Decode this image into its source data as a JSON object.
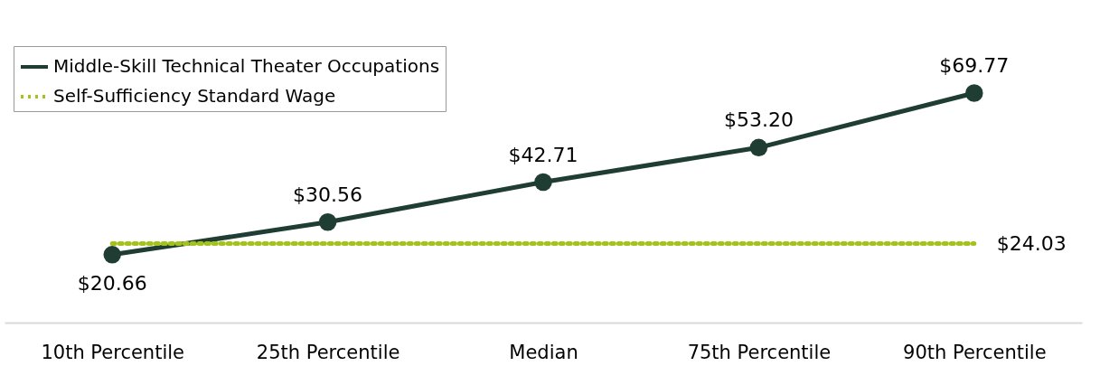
{
  "chart_data": {
    "type": "line",
    "categories": [
      "10th Percentile",
      "25th Percentile",
      "Median",
      "75th Percentile",
      "90th Percentile"
    ],
    "legend": "top left",
    "grid": false,
    "series": [
      {
        "name": "Middle-Skill Technical Theater Occupations",
        "color": "#1f3d33",
        "marker": "circle",
        "line_style": "solid",
        "values": [
          20.66,
          30.56,
          42.71,
          53.2,
          69.77
        ],
        "value_labels": [
          "$20.66",
          "$30.56",
          "$42.71",
          "$53.20",
          "$69.77"
        ]
      },
      {
        "name": "Self-Sufficiency Standard Wage",
        "color": "#a4c21c",
        "marker": "none",
        "line_style": "dotted",
        "values": [
          24.03,
          24.03,
          24.03,
          24.03,
          24.03
        ],
        "value_labels": [
          null,
          null,
          null,
          null,
          "$24.03"
        ]
      }
    ]
  }
}
